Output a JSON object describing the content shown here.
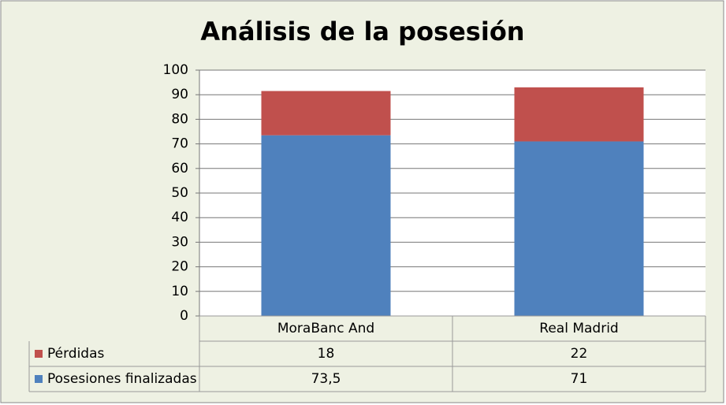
{
  "chart_data": {
    "type": "stacked-bar",
    "title": "Análisis de la posesión",
    "categories": [
      "MoraBanc And",
      "Real Madrid"
    ],
    "series": [
      {
        "name": "Posesiones finalizadas",
        "color": "#4f81bd",
        "values": [
          73.5,
          71
        ],
        "value_labels": [
          "73,5",
          "71"
        ]
      },
      {
        "name": "Pérdidas",
        "color": "#c0504d",
        "values": [
          18,
          22
        ]
      }
    ],
    "ylim": [
      0,
      100
    ],
    "yticks": [
      0,
      10,
      20,
      30,
      40,
      50,
      60,
      70,
      80,
      90,
      100
    ],
    "grid": true
  }
}
